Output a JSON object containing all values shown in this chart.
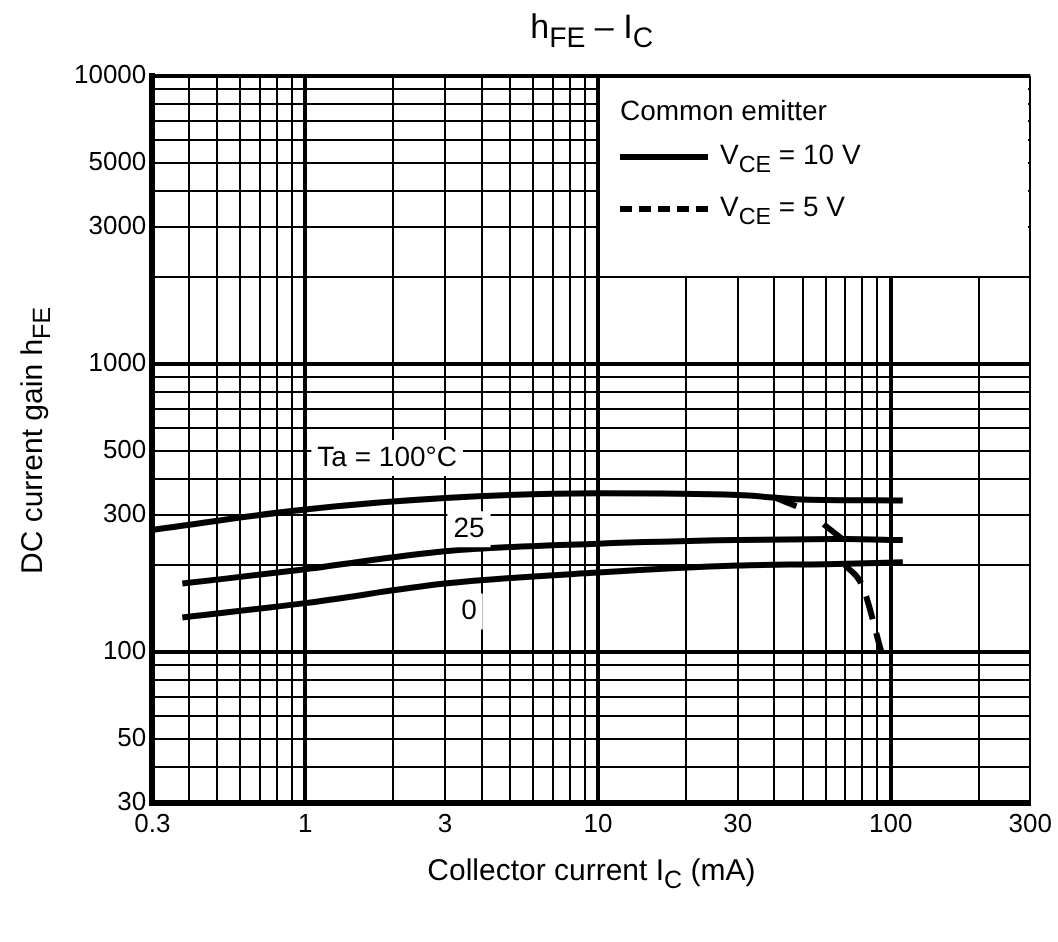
{
  "chart_data": {
    "type": "line",
    "title": "h$_{FE}$ – I$_{C}$",
    "xlabel": "Collector current   I$_{C}$   (mA)",
    "ylabel": "DC current gain   h$_{FE}$",
    "legend_title": "Common emitter",
    "legend": "top right",
    "log": "xy",
    "grid": true,
    "marker": "none",
    "xlim": [
      0.3,
      300
    ],
    "ylim": [
      30,
      10000
    ],
    "xticks": [
      0.3,
      {
        "value": 0.4,
        "label": null
      },
      {
        "value": 0.5,
        "label": null
      },
      {
        "value": 0.6,
        "label": null
      },
      {
        "value": 0.7,
        "label": null
      },
      {
        "value": 0.8,
        "label": null
      },
      {
        "value": 0.9,
        "label": null
      },
      1,
      {
        "value": 2,
        "label": null
      },
      3,
      {
        "value": 4,
        "label": null
      },
      {
        "value": 5,
        "label": null
      },
      {
        "value": 6,
        "label": null
      },
      {
        "value": 7,
        "label": null
      },
      {
        "value": 8,
        "label": null
      },
      {
        "value": 9,
        "label": null
      },
      10,
      {
        "value": 20,
        "label": null
      },
      30,
      {
        "value": 40,
        "label": null
      },
      {
        "value": 50,
        "label": null
      },
      {
        "value": 60,
        "label": null
      },
      {
        "value": 70,
        "label": null
      },
      {
        "value": 80,
        "label": null
      },
      {
        "value": 90,
        "label": null
      },
      100,
      {
        "value": 200,
        "label": null
      },
      300
    ],
    "yticks": [
      30,
      {
        "value": 40,
        "label": null
      },
      50,
      {
        "value": 60,
        "label": null
      },
      {
        "value": 70,
        "label": null
      },
      {
        "value": 80,
        "label": null
      },
      {
        "value": 90,
        "label": null
      },
      100,
      {
        "value": 200,
        "label": null
      },
      300,
      {
        "value": 400,
        "label": null
      },
      500,
      {
        "value": 600,
        "label": null
      },
      {
        "value": 700,
        "label": null
      },
      {
        "value": 800,
        "label": null
      },
      {
        "value": 900,
        "label": null
      },
      1000,
      {
        "value": 2000,
        "label": null
      },
      3000,
      {
        "value": 4000,
        "label": null
      },
      5000,
      {
        "value": 6000,
        "label": null
      },
      {
        "value": 7000,
        "label": null
      },
      {
        "value": 8000,
        "label": null
      },
      {
        "value": 9000,
        "label": null
      },
      10000
    ],
    "series": [
      {
        "name": "V$_{CE}$ = 10 V",
        "color": "#000000",
        "line_style": "solid",
        "x": [
          0.3,
          1,
          3,
          10,
          30,
          50,
          110
        ],
        "values": [
          266,
          313,
          343,
          356,
          351,
          339,
          336
        ]
      },
      {
        "color": "#000000",
        "line_style": "solid",
        "x": [
          0.38,
          1,
          3,
          10,
          30,
          70,
          110
        ],
        "values": [
          173,
          194,
          224,
          238,
          245,
          247,
          245
        ]
      },
      {
        "color": "#000000",
        "line_style": "solid",
        "x": [
          0.38,
          1,
          3,
          10,
          30,
          60,
          110
        ],
        "values": [
          132,
          148,
          173,
          189,
          200,
          202,
          205
        ]
      },
      {
        "name": "V$_{CE}$ = 5 V",
        "color": "#000000",
        "line_style": "dashed",
        "x": [
          40,
          50
        ],
        "values": [
          345,
          315
        ]
      },
      {
        "color": "#000000",
        "line_style": "dashed",
        "x": [
          59,
          69
        ],
        "values": [
          278,
          245
        ]
      },
      {
        "color": "#000000",
        "line_style": "dashed",
        "x": [
          70,
          80,
          93
        ],
        "values": [
          200,
          170,
          100
        ]
      }
    ],
    "annotations": [
      "Ta = 100°C",
      "25",
      "0"
    ]
  }
}
